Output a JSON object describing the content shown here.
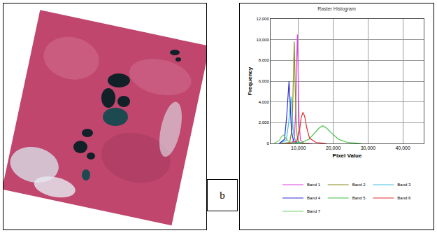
{
  "panel_label": "b",
  "chart_data": {
    "type": "line",
    "title": "Raster Histogram",
    "x_label": "Pixel Value",
    "y_label": "Frequency",
    "xlim": [
      2000,
      46000
    ],
    "ylim": [
      0,
      12000
    ],
    "xticks": [
      {
        "value": 10000,
        "label": "10,000"
      },
      {
        "value": 20000,
        "label": "20,000"
      },
      {
        "value": 30000,
        "label": "30,000"
      },
      {
        "value": 40000,
        "label": "40,000"
      }
    ],
    "yticks": [
      0,
      {
        "value": 2000,
        "label": "2,000"
      },
      {
        "value": 4000,
        "label": "4,000"
      },
      {
        "value": 6000,
        "label": "6,000"
      },
      {
        "value": 8000,
        "label": "8,000"
      },
      {
        "value": 10000,
        "label": "10,000"
      },
      {
        "value": 12000,
        "label": "12,000"
      }
    ],
    "grid": true,
    "legend": "bottom",
    "series": [
      {
        "name": "Band 1",
        "color": "#e040e0",
        "x": [
          5000,
          8000,
          8800,
          9200,
          9500,
          9700,
          9900,
          10200,
          10600,
          11500,
          14000
        ],
        "values": [
          0,
          50,
          400,
          3000,
          8000,
          10500,
          7000,
          2000,
          300,
          50,
          0
        ]
      },
      {
        "name": "Band 2",
        "color": "#8a8a20",
        "x": [
          5000,
          7500,
          8200,
          8500,
          8800,
          9100,
          9400,
          9800,
          10500,
          13000
        ],
        "values": [
          0,
          100,
          1500,
          6000,
          9800,
          5000,
          1500,
          300,
          50,
          0
        ]
      },
      {
        "name": "Band 3",
        "color": "#40c0e0",
        "x": [
          4500,
          6500,
          7200,
          7600,
          7900,
          8200,
          8600,
          9200,
          11000
        ],
        "values": [
          0,
          300,
          2000,
          3800,
          4500,
          2800,
          900,
          200,
          0
        ]
      },
      {
        "name": "Band 4",
        "color": "#3030d0",
        "x": [
          4500,
          6000,
          6600,
          7000,
          7300,
          7600,
          8000,
          8600,
          10000
        ],
        "values": [
          0,
          400,
          2500,
          5000,
          6000,
          4000,
          1200,
          200,
          0
        ]
      },
      {
        "name": "Band 5",
        "color": "#40c040",
        "x": [
          8000,
          11000,
          13000,
          15000,
          16000,
          17000,
          18000,
          19500,
          21500,
          24000,
          28000
        ],
        "values": [
          0,
          100,
          400,
          1100,
          1500,
          1700,
          1500,
          1000,
          400,
          100,
          0
        ]
      },
      {
        "name": "Band 6",
        "color": "#e03030",
        "x": [
          7000,
          9500,
          10300,
          10800,
          11300,
          11800,
          12400,
          13200,
          15000,
          18000
        ],
        "values": [
          0,
          200,
          1200,
          2500,
          3000,
          2600,
          1500,
          500,
          100,
          0
        ]
      },
      {
        "name": "Band 7",
        "color": "#70d070",
        "x": [
          3000,
          4500,
          5200,
          5800,
          6400,
          7200,
          8500,
          11000
        ],
        "values": [
          0,
          300,
          700,
          800,
          500,
          200,
          50,
          0
        ]
      }
    ]
  }
}
